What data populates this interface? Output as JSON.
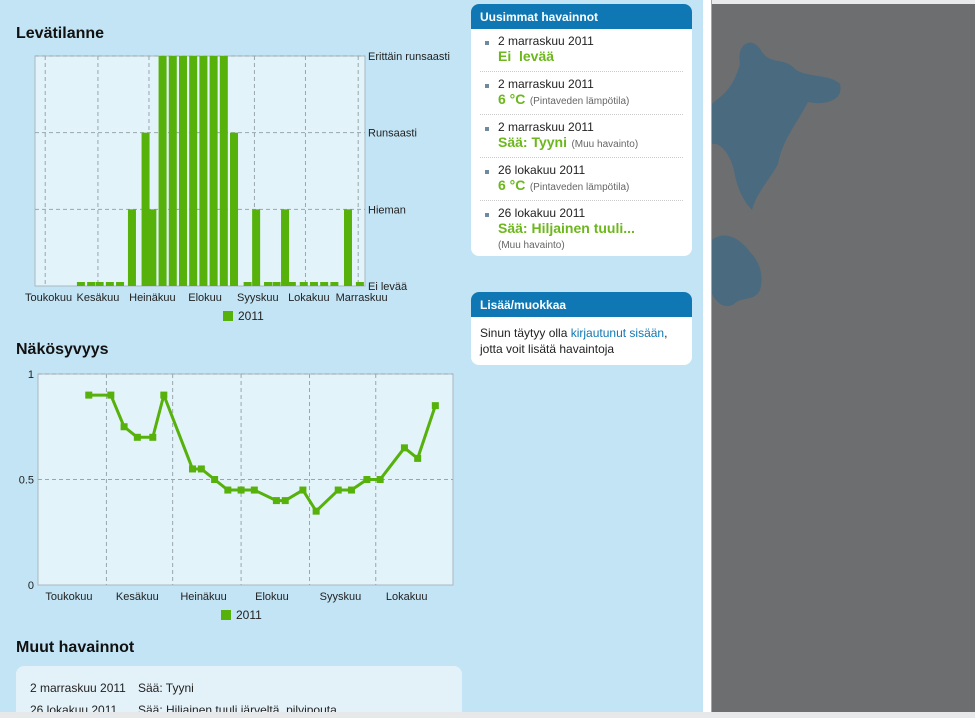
{
  "sections": {
    "algae_title": "Levätilanne",
    "visibility_title": "Näkösyvyys",
    "other_title": "Muut havainnot"
  },
  "chart_data": [
    {
      "type": "bar",
      "title": "Levätilanne",
      "y_categories": [
        "Ei levää",
        "Hieman",
        "Runsaasti",
        "Erittäin runsaasti"
      ],
      "ylim": [
        0,
        3
      ],
      "xlim": [
        "2011-04-25",
        "2011-11-05"
      ],
      "x_tick_labels": [
        "Toukokuu",
        "Kesäkuu",
        "Heinäkuu",
        "Elokuu",
        "Syyskuu",
        "Lokakuu",
        "Marraskuu"
      ],
      "grid": true,
      "legend": "bottom",
      "series": [
        {
          "name": "2011",
          "color": "#56b10a",
          "points": [
            {
              "x": "2011-05-22",
              "y": 0
            },
            {
              "x": "2011-05-28",
              "y": 0
            },
            {
              "x": "2011-06-02",
              "y": 0
            },
            {
              "x": "2011-06-08",
              "y": 0
            },
            {
              "x": "2011-06-14",
              "y": 0
            },
            {
              "x": "2011-06-21",
              "y": 1
            },
            {
              "x": "2011-06-29",
              "y": 2
            },
            {
              "x": "2011-07-03",
              "y": 1
            },
            {
              "x": "2011-07-09",
              "y": 3
            },
            {
              "x": "2011-07-15",
              "y": 3
            },
            {
              "x": "2011-07-21",
              "y": 3
            },
            {
              "x": "2011-07-27",
              "y": 3
            },
            {
              "x": "2011-08-02",
              "y": 3
            },
            {
              "x": "2011-08-08",
              "y": 3
            },
            {
              "x": "2011-08-14",
              "y": 3
            },
            {
              "x": "2011-08-20",
              "y": 2
            },
            {
              "x": "2011-08-28",
              "y": 0
            },
            {
              "x": "2011-09-02",
              "y": 1
            },
            {
              "x": "2011-09-09",
              "y": 0
            },
            {
              "x": "2011-09-14",
              "y": 0
            },
            {
              "x": "2011-09-19",
              "y": 1
            },
            {
              "x": "2011-09-23",
              "y": 0
            },
            {
              "x": "2011-09-30",
              "y": 0
            },
            {
              "x": "2011-10-06",
              "y": 0
            },
            {
              "x": "2011-10-12",
              "y": 0
            },
            {
              "x": "2011-10-18",
              "y": 0
            },
            {
              "x": "2011-10-26",
              "y": 1
            },
            {
              "x": "2011-11-02",
              "y": 0
            }
          ]
        }
      ]
    },
    {
      "type": "line",
      "title": "Näkösyvyys",
      "ylim": [
        0,
        1
      ],
      "y_ticks": [
        "0",
        "0.5",
        "1"
      ],
      "xlim": [
        "2011-05-01",
        "2011-11-05"
      ],
      "x_tick_labels": [
        "Toukokuu",
        "Kesäkuu",
        "Heinäkuu",
        "Elokuu",
        "Syyskuu",
        "Lokakuu"
      ],
      "grid": true,
      "legend": "bottom",
      "series": [
        {
          "name": "2011",
          "color": "#56b10a",
          "points": [
            {
              "x": "2011-05-24",
              "y": 0.9
            },
            {
              "x": "2011-06-03",
              "y": 0.9
            },
            {
              "x": "2011-06-09",
              "y": 0.75
            },
            {
              "x": "2011-06-15",
              "y": 0.7
            },
            {
              "x": "2011-06-22",
              "y": 0.7
            },
            {
              "x": "2011-06-27",
              "y": 0.9
            },
            {
              "x": "2011-07-10",
              "y": 0.55
            },
            {
              "x": "2011-07-14",
              "y": 0.55
            },
            {
              "x": "2011-07-20",
              "y": 0.5
            },
            {
              "x": "2011-07-26",
              "y": 0.45
            },
            {
              "x": "2011-08-01",
              "y": 0.45
            },
            {
              "x": "2011-08-07",
              "y": 0.45
            },
            {
              "x": "2011-08-17",
              "y": 0.4
            },
            {
              "x": "2011-08-21",
              "y": 0.4
            },
            {
              "x": "2011-08-29",
              "y": 0.45
            },
            {
              "x": "2011-09-04",
              "y": 0.35
            },
            {
              "x": "2011-09-14",
              "y": 0.45
            },
            {
              "x": "2011-09-20",
              "y": 0.45
            },
            {
              "x": "2011-09-27",
              "y": 0.5
            },
            {
              "x": "2011-10-03",
              "y": 0.5
            },
            {
              "x": "2011-10-14",
              "y": 0.65
            },
            {
              "x": "2011-10-20",
              "y": 0.6
            },
            {
              "x": "2011-10-28",
              "y": 0.85
            }
          ]
        }
      ]
    }
  ],
  "latest": {
    "title": "Uusimmat havainnot",
    "items": [
      {
        "date": "2 marraskuu 2011",
        "value": "Ei  levää",
        "note": ""
      },
      {
        "date": "2 marraskuu 2011",
        "value": "6 °C",
        "note": "(Pintaveden lämpötila)"
      },
      {
        "date": "2 marraskuu 2011",
        "value": "Sää: Tyyni",
        "note": "(Muu havainto)"
      },
      {
        "date": "26 lokakuu 2011",
        "value": "6 °C",
        "note": "(Pintaveden lämpötila)"
      },
      {
        "date": "26 lokakuu 2011",
        "value": "Sää: Hiljainen tuuli...",
        "note": "(Muu havainto)"
      }
    ]
  },
  "edit_box": {
    "title": "Lisää/muokkaa",
    "text_before": "Sinun täytyy olla ",
    "link": "kirjautunut sisään",
    "text_after": ", jotta voit lisätä havaintoja"
  },
  "other_observations": [
    {
      "date": "2 marraskuu 2011",
      "text": "Sää: Tyyni"
    },
    {
      "date": "26 lokakuu 2011",
      "text": "Sää: Hiljainen tuuli järveltä, pilvipouta"
    }
  ],
  "colors": {
    "accent": "#0f78b4",
    "value_green": "#6cb71c",
    "panel_bg": "#c2e4f4",
    "map_water": "#4a6a80"
  }
}
